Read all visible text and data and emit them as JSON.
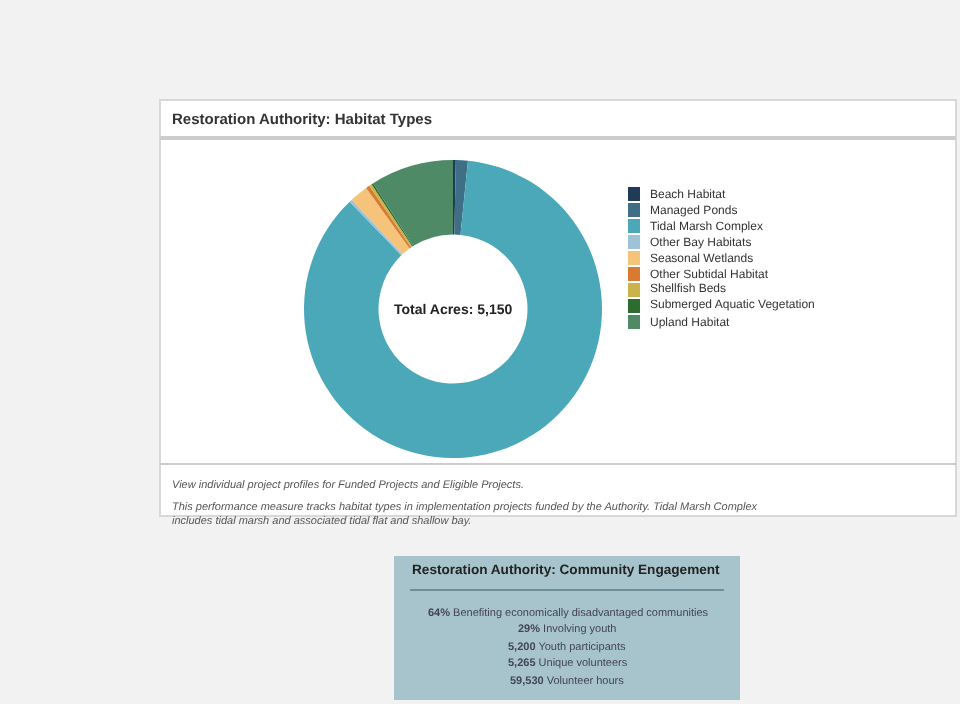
{
  "chart_data": [
    {
      "type": "donut",
      "title": "Restoration Authority: Habitat Types",
      "categories": [
        "Beach Habitat",
        "Managed Ponds",
        "Tidal Marsh Complex",
        "Other Bay Habitats",
        "Seasonal Wetlands",
        "Other Subtidal Habitat",
        "Shellfish Beds",
        "Submerged Aquatic Vegetation",
        "Upland Habitat"
      ],
      "values": [
        0.3,
        1.3,
        86.2,
        0.3,
        2.0,
        0.4,
        0.3,
        0.2,
        9.0
      ],
      "colors": [
        "#1f3b57",
        "#3f6f86",
        "#4aa8b8",
        "#9ec3d6",
        "#f6c37a",
        "#d97a32",
        "#c9b34a",
        "#2e6b2e",
        "#4f8a66"
      ],
      "legend": "right",
      "annotations": [
        "Total Acres: 5,150",
        "View individual project profiles for Funded Projects and Eligible Projects.",
        "This performance measure tracks habitat types in implementation projects funded by the Authority. Tidal Marsh Complex includes tidal marsh and associated tidal flat and shallow bay."
      ]
    },
    {
      "type": "other",
      "title": "Restoration Authority: Community Engagement",
      "annotations": [
        "64% Benefiting economically disadvantaged communities",
        "29% Involving youth",
        "5,200 Youth participants",
        "5,265 Unique volunteers",
        "59,530 Volunteer hours"
      ]
    }
  ]
}
